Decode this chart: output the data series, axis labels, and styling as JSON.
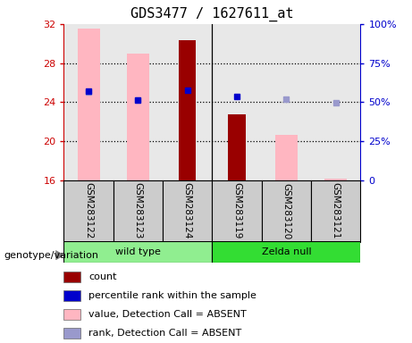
{
  "title": "GDS3477 / 1627611_at",
  "samples": [
    "GSM283122",
    "GSM283123",
    "GSM283124",
    "GSM283119",
    "GSM283120",
    "GSM283121"
  ],
  "ylim_left": [
    16,
    32
  ],
  "ylim_right": [
    0,
    100
  ],
  "yticks_left": [
    16,
    20,
    24,
    28,
    32
  ],
  "yticks_right": [
    0,
    25,
    50,
    75,
    100
  ],
  "pink_bar_values": [
    31.5,
    29.0,
    null,
    null,
    20.6,
    16.15
  ],
  "dark_red_bar_values": [
    null,
    null,
    30.35,
    22.7,
    null,
    null
  ],
  "blue_square_values": [
    25.1,
    24.25,
    25.2,
    24.55,
    null,
    null
  ],
  "light_blue_square_values": [
    25.05,
    24.2,
    null,
    null,
    24.3,
    23.95
  ],
  "bar_bottom": 16,
  "pink_color": "#ffb6c1",
  "dark_red_color": "#990000",
  "blue_color": "#0000cc",
  "light_blue_color": "#9999cc",
  "left_axis_color": "#cc0000",
  "right_axis_color": "#0000cc",
  "group_label": "genotype/variation",
  "wt_color": "#90ee90",
  "zelda_color": "#33dd33",
  "sample_box_color": "#cccccc",
  "plot_bg_color": "#e8e8e8",
  "legend_items": [
    [
      "#990000",
      "count"
    ],
    [
      "#0000cc",
      "percentile rank within the sample"
    ],
    [
      "#ffb6c1",
      "value, Detection Call = ABSENT"
    ],
    [
      "#9999cc",
      "rank, Detection Call = ABSENT"
    ]
  ]
}
